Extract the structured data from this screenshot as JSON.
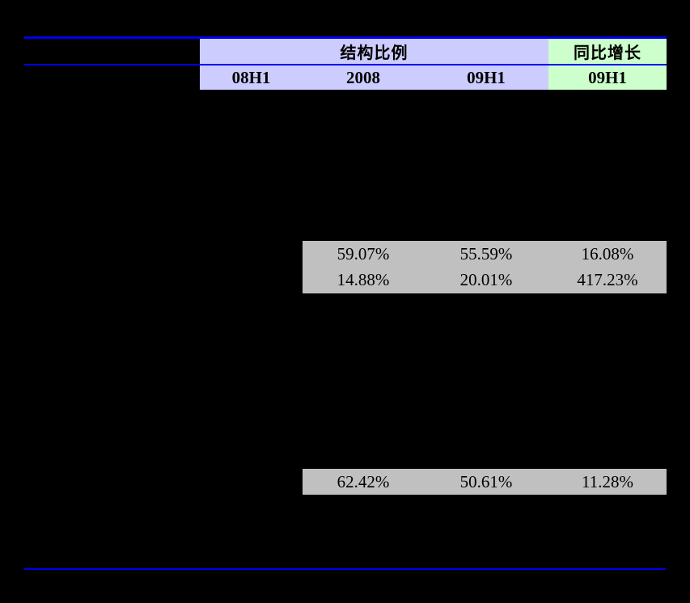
{
  "page": {
    "background_color": "#000000"
  },
  "table": {
    "line_color": "#0000EE",
    "header": {
      "structure_bg": "#CCCCFF",
      "yoy_bg": "#CCFFCC",
      "group_structure_label": "结构比例",
      "group_yoy_label": "同比增长",
      "columns": [
        "08H1",
        "2008",
        "09H1"
      ],
      "yoy_column": "09H1"
    },
    "data_bg": "#C0C0C0",
    "block1_rows": [
      {
        "c2008": "59.07%",
        "c09h1": "55.59%",
        "yoy": "16.08%"
      },
      {
        "c2008": "14.88%",
        "c09h1": "20.01%",
        "yoy": "417.23%"
      }
    ],
    "block2_rows": [
      {
        "c2008": "62.42%",
        "c09h1": "50.61%",
        "yoy": "11.28%"
      }
    ]
  }
}
